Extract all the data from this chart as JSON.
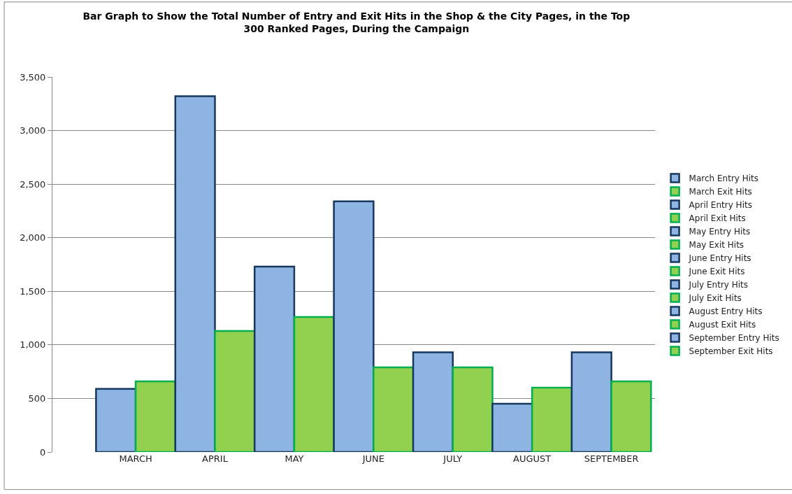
{
  "chart_data": {
    "type": "bar",
    "title": "Bar Graph to Show the Total Number of Entry and Exit Hits in the Shop & the City Pages, in the Top 300 Ranked Pages, During the Campaign",
    "categories": [
      "MARCH",
      "APRIL",
      "MAY",
      "JUNE",
      "JULY",
      "AUGUST",
      "SEPTEMBER"
    ],
    "series": [
      {
        "name": "March Entry Hits",
        "color": "#8eb4e3",
        "values": [
          590,
          null,
          null,
          null,
          null,
          null,
          null
        ]
      },
      {
        "name": "March Exit Hits",
        "color": "#92d050",
        "values": [
          660,
          null,
          null,
          null,
          null,
          null,
          null
        ]
      },
      {
        "name": "April Entry Hits",
        "color": "#8eb4e3",
        "values": [
          null,
          3320,
          null,
          null,
          null,
          null,
          null
        ]
      },
      {
        "name": "April Exit Hits",
        "color": "#92d050",
        "values": [
          null,
          1130,
          null,
          null,
          null,
          null,
          null
        ]
      },
      {
        "name": "May Entry Hits",
        "color": "#8eb4e3",
        "values": [
          null,
          null,
          1730,
          null,
          null,
          null,
          null
        ]
      },
      {
        "name": "May Exit Hits",
        "color": "#92d050",
        "values": [
          null,
          null,
          1260,
          null,
          null,
          null,
          null
        ]
      },
      {
        "name": "June Entry Hits",
        "color": "#8eb4e3",
        "values": [
          null,
          null,
          null,
          2340,
          null,
          null,
          null
        ]
      },
      {
        "name": "June Exit Hits",
        "color": "#92d050",
        "values": [
          null,
          null,
          null,
          790,
          null,
          null,
          null
        ]
      },
      {
        "name": "July Entry Hits",
        "color": "#8eb4e3",
        "values": [
          null,
          null,
          null,
          null,
          930,
          null,
          null
        ]
      },
      {
        "name": "July Exit Hits",
        "color": "#92d050",
        "values": [
          null,
          null,
          null,
          null,
          790,
          null,
          null
        ]
      },
      {
        "name": "August Entry Hits",
        "color": "#8eb4e3",
        "values": [
          null,
          null,
          null,
          null,
          null,
          450,
          null
        ]
      },
      {
        "name": "August Exit Hits",
        "color": "#92d050",
        "values": [
          null,
          null,
          null,
          null,
          null,
          600,
          null
        ]
      },
      {
        "name": "September Entry Hits",
        "color": "#8eb4e3",
        "values": [
          null,
          null,
          null,
          null,
          null,
          null,
          930
        ]
      },
      {
        "name": "September Exit Hits",
        "color": "#92d050",
        "values": [
          null,
          null,
          null,
          null,
          null,
          null,
          660
        ]
      }
    ],
    "ylim": [
      0,
      3500
    ],
    "yticks": [
      {
        "value": 0,
        "label": "0"
      },
      {
        "value": 500,
        "label": "500"
      },
      {
        "value": 1000,
        "label": "1,000"
      },
      {
        "value": 1500,
        "label": "1,500"
      },
      {
        "value": 2000,
        "label": "2,000"
      },
      {
        "value": 2500,
        "label": "2,500"
      },
      {
        "value": 3000,
        "label": "3,000"
      },
      {
        "value": 3500,
        "label": "3,500"
      }
    ],
    "grid": "y",
    "legend": "right"
  }
}
